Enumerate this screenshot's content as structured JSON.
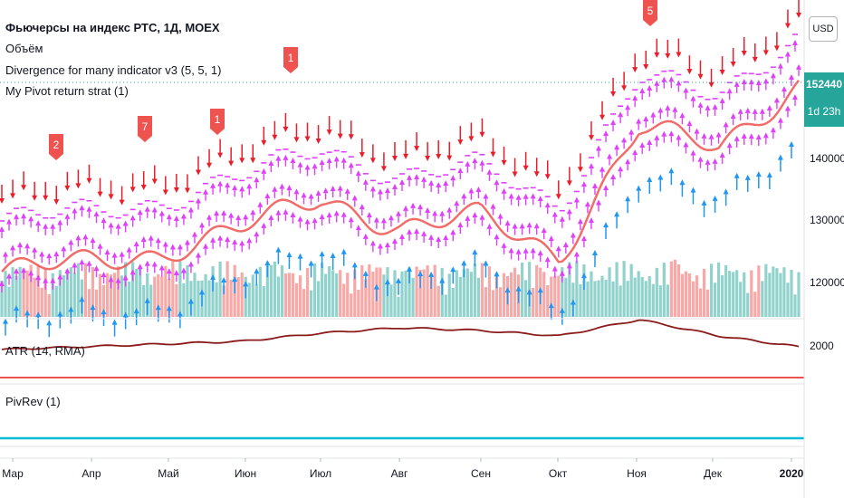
{
  "chart_title": "Фьючерсы на индекс РТС, 1Д, MOEX",
  "indicators": {
    "volume": "Объём",
    "divergence": "Divergence for many indicator v3 (5, 5, 1)",
    "pivot_strat": "My Pivot return strat (1)",
    "atr": "ATR (14, RMA)",
    "pivrev": "PivRev (1)"
  },
  "price_scale": {
    "currency": "USD",
    "labels": [
      "140000",
      "130000",
      "120000"
    ],
    "last_price": "152440",
    "countdown": "1d 23h",
    "atr_label": "2000"
  },
  "time_axis": [
    "Мар",
    "Апр",
    "Май",
    "Июн",
    "Июл",
    "Авг",
    "Сен",
    "Окт",
    "Ноя",
    "Дек",
    "2020"
  ],
  "divergence_flags": [
    "2",
    "7",
    "1",
    "1",
    "5"
  ],
  "colors": {
    "bull": "#26a69a",
    "bear": "#ef5350",
    "magenta": "#e040fb",
    "up_arrow": "#2196f3",
    "down_arrow": "#e91e2a",
    "atr_line": "#8b1a1a",
    "pivrev_top": "#ef5350",
    "pivrev_bottom": "#00bcd4"
  },
  "chart_data": {
    "type": "line",
    "title": "Фьючерсы на индекс РТС, 1Д, MOEX",
    "x": [
      "Мар",
      "Апр",
      "Май",
      "Июн",
      "Июл",
      "Авг",
      "Сен",
      "Окт",
      "Ноя",
      "Дек",
      "2020"
    ],
    "series": [
      {
        "name": "Фьючерсы на индекс РТС, 1Д, MOEX",
        "values": [
          122500,
          124000,
          125500,
          129500,
          134500,
          129500,
          131500,
          125000,
          146000,
          142500,
          153000
        ]
      },
      {
        "name": "ATR (14, RMA)",
        "values": [
          1950,
          2000,
          2050,
          2100,
          2250,
          2350,
          2300,
          2200,
          2500,
          2200,
          2000
        ]
      }
    ],
    "ylim": [
      115000,
      160000
    ],
    "yticks": [
      120000,
      130000,
      140000
    ],
    "last_price": 152440,
    "grid": false
  }
}
